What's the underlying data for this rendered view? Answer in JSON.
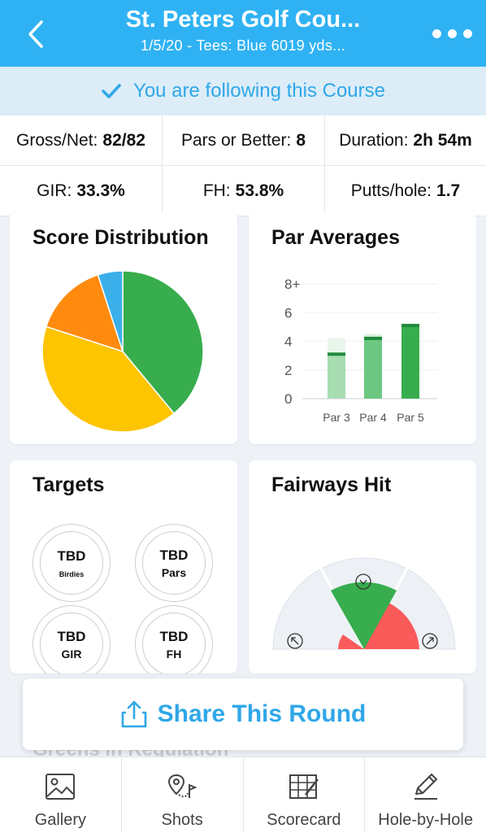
{
  "header": {
    "title": "St. Peters Golf Cou...",
    "subtitle": "1/5/20 - Tees: Blue 6019 yds...",
    "background": "#2fb2f3"
  },
  "follow_banner": {
    "text": "You are following this Course",
    "icon": "checkmark-icon",
    "color": "#2fa7e8"
  },
  "stats": {
    "row1": [
      {
        "label": "Gross/Net:",
        "value": "82/82"
      },
      {
        "label": "Pars or Better:",
        "value": "8"
      },
      {
        "label": "Duration:",
        "value": "2h 54m"
      }
    ],
    "row2": [
      {
        "label": "GIR:",
        "value": "33.3%"
      },
      {
        "label": "FH:",
        "value": "53.8%"
      },
      {
        "label": "Putts/hole:",
        "value": "1.7"
      }
    ]
  },
  "score_distribution": {
    "title": "Score Distribution",
    "chart_data": {
      "type": "pie",
      "slices": [
        {
          "value": 39,
          "color": "#37ad4e"
        },
        {
          "value": 41,
          "color": "#fdc400"
        },
        {
          "value": 15,
          "color": "#ff8a0e"
        },
        {
          "value": 5,
          "color": "#3aafea"
        }
      ]
    }
  },
  "par_averages": {
    "title": "Par Averages",
    "chart_data": {
      "type": "bar",
      "categories": [
        "Par 3",
        "Par 4",
        "Par 5"
      ],
      "y_ticks": [
        "0",
        "2",
        "4",
        "6",
        "8+"
      ],
      "ylim": [
        0,
        8
      ],
      "values": [
        3.1,
        4.2,
        5.1
      ],
      "ranges": [
        4.2,
        4.5,
        5.2
      ],
      "colors": [
        "#a8dcb1",
        "#6cc781",
        "#38ad4f"
      ],
      "range_colors": [
        "#e9f6eb",
        "#d9efdd",
        "#cdebd3"
      ],
      "marker_color": "#1e8a3b"
    }
  },
  "targets": {
    "title": "Targets",
    "items": [
      {
        "value": "TBD",
        "label": "Birdies"
      },
      {
        "value": "TBD",
        "label": "Pars"
      },
      {
        "value": "TBD",
        "label": "GIR"
      },
      {
        "value": "TBD",
        "label": "FH"
      }
    ]
  },
  "fairways_hit": {
    "title": "Fairways Hit",
    "icons": [
      "arrow-up-left-icon",
      "checkmark-icon",
      "arrow-up-right-icon"
    ],
    "colors": {
      "hit": "#37ad4e",
      "miss": "#fa5a5a",
      "track": "#edf1f6"
    }
  },
  "share": {
    "label": "Share This Round",
    "icon": "share-icon"
  },
  "peek_text": "Greens in Regulation",
  "nav": [
    {
      "label": "Gallery",
      "icon": "gallery-icon"
    },
    {
      "label": "Shots",
      "icon": "shots-icon"
    },
    {
      "label": "Scorecard",
      "icon": "scorecard-icon"
    },
    {
      "label": "Hole-by-Hole",
      "icon": "pencil-icon"
    }
  ]
}
